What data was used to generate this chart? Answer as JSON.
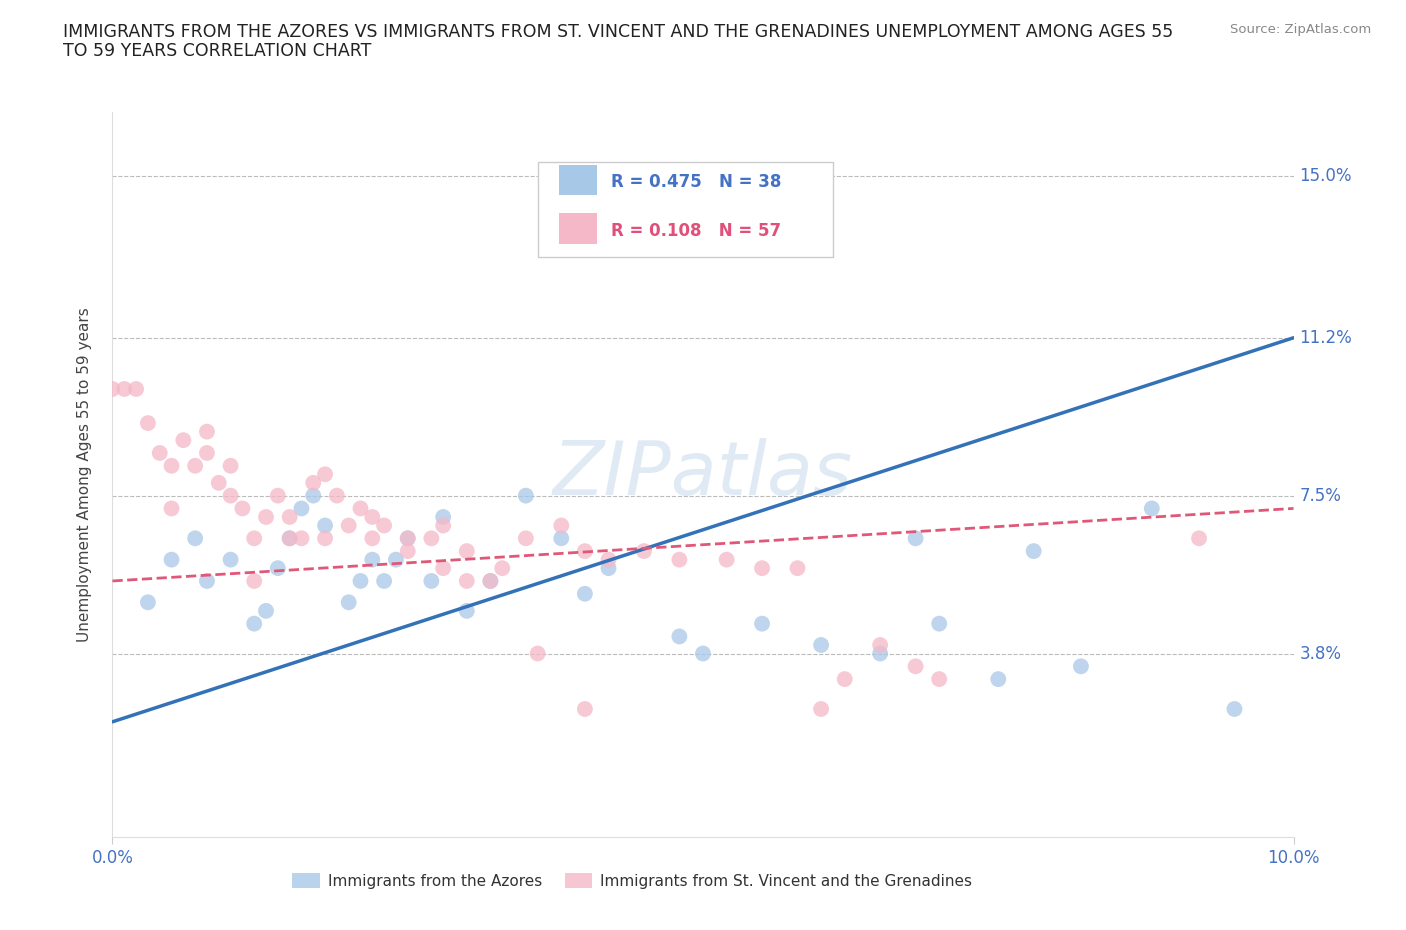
{
  "title_line1": "IMMIGRANTS FROM THE AZORES VS IMMIGRANTS FROM ST. VINCENT AND THE GRENADINES UNEMPLOYMENT AMONG AGES 55",
  "title_line2": "TO 59 YEARS CORRELATION CHART",
  "source": "Source: ZipAtlas.com",
  "ylabel": "Unemployment Among Ages 55 to 59 years",
  "xlim": [
    0.0,
    0.1
  ],
  "ylim": [
    -0.005,
    0.165
  ],
  "yticks": [
    0.038,
    0.075,
    0.112,
    0.15
  ],
  "ytick_labels": [
    "3.8%",
    "7.5%",
    "11.2%",
    "15.0%"
  ],
  "hlines": [
    0.038,
    0.075,
    0.112,
    0.15
  ],
  "legend_r1": "R = 0.475",
  "legend_n1": "N = 38",
  "legend_r2": "R = 0.108",
  "legend_n2": "N = 57",
  "color_blue": "#a8c8e8",
  "color_pink": "#f4b8c8",
  "color_blue_line": "#3472b8",
  "color_pink_line": "#e05878",
  "color_blue_text": "#4472c4",
  "color_pink_text": "#e0507a",
  "azores_x": [
    0.003,
    0.005,
    0.007,
    0.008,
    0.01,
    0.012,
    0.013,
    0.014,
    0.015,
    0.016,
    0.017,
    0.018,
    0.02,
    0.021,
    0.022,
    0.023,
    0.024,
    0.025,
    0.027,
    0.028,
    0.03,
    0.032,
    0.035,
    0.038,
    0.04,
    0.042,
    0.048,
    0.05,
    0.055,
    0.06,
    0.065,
    0.068,
    0.07,
    0.075,
    0.078,
    0.082,
    0.088,
    0.095
  ],
  "azores_y": [
    0.05,
    0.06,
    0.065,
    0.055,
    0.06,
    0.045,
    0.048,
    0.058,
    0.065,
    0.072,
    0.075,
    0.068,
    0.05,
    0.055,
    0.06,
    0.055,
    0.06,
    0.065,
    0.055,
    0.07,
    0.048,
    0.055,
    0.075,
    0.065,
    0.052,
    0.058,
    0.042,
    0.038,
    0.045,
    0.04,
    0.038,
    0.065,
    0.045,
    0.032,
    0.062,
    0.035,
    0.072,
    0.025
  ],
  "stvincent_x": [
    0.0,
    0.001,
    0.002,
    0.003,
    0.004,
    0.005,
    0.006,
    0.007,
    0.008,
    0.009,
    0.01,
    0.011,
    0.012,
    0.013,
    0.014,
    0.015,
    0.016,
    0.017,
    0.018,
    0.019,
    0.02,
    0.021,
    0.022,
    0.023,
    0.025,
    0.027,
    0.028,
    0.03,
    0.032,
    0.035,
    0.038,
    0.04,
    0.042,
    0.045,
    0.048,
    0.052,
    0.055,
    0.058,
    0.06,
    0.062,
    0.065,
    0.068,
    0.07,
    0.005,
    0.008,
    0.01,
    0.012,
    0.015,
    0.018,
    0.022,
    0.025,
    0.028,
    0.03,
    0.033,
    0.036,
    0.04,
    0.092
  ],
  "stvincent_y": [
    0.1,
    0.1,
    0.1,
    0.092,
    0.085,
    0.072,
    0.088,
    0.082,
    0.09,
    0.078,
    0.082,
    0.072,
    0.065,
    0.07,
    0.075,
    0.07,
    0.065,
    0.078,
    0.08,
    0.075,
    0.068,
    0.072,
    0.07,
    0.068,
    0.065,
    0.065,
    0.068,
    0.062,
    0.055,
    0.065,
    0.068,
    0.062,
    0.06,
    0.062,
    0.06,
    0.06,
    0.058,
    0.058,
    0.025,
    0.032,
    0.04,
    0.035,
    0.032,
    0.082,
    0.085,
    0.075,
    0.055,
    0.065,
    0.065,
    0.065,
    0.062,
    0.058,
    0.055,
    0.058,
    0.038,
    0.025,
    0.065
  ],
  "blue_line_x": [
    0.0,
    0.1
  ],
  "blue_line_y": [
    0.022,
    0.112
  ],
  "pink_line_x": [
    0.0,
    0.1
  ],
  "pink_line_y": [
    0.055,
    0.072
  ]
}
